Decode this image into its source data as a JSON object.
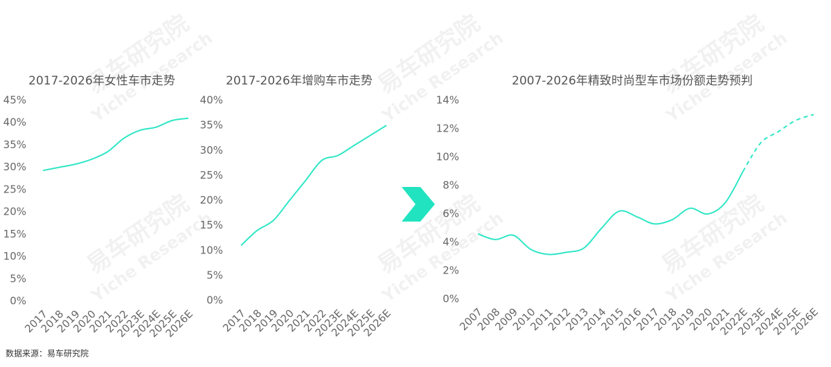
{
  "chart_data": [
    {
      "type": "line",
      "title": "2017-2026年女性车市走势",
      "categories": [
        "2017",
        "2018",
        "2019",
        "2020",
        "2021",
        "2022",
        "2023E",
        "2024E",
        "2025E",
        "2026E"
      ],
      "series": [
        {
          "color": "#2ee6c6",
          "values": [
            29.3,
            30,
            30.7,
            31.8,
            33.5,
            36.5,
            38.3,
            39,
            40.5,
            41
          ]
        }
      ],
      "ylim": [
        0,
        45
      ],
      "yticks": [
        {
          "value": 0,
          "label": "0%"
        },
        {
          "value": 5,
          "label": "5%"
        },
        {
          "value": 10,
          "label": "10%"
        },
        {
          "value": 15,
          "label": "15%"
        },
        {
          "value": 20,
          "label": "20%"
        },
        {
          "value": 25,
          "label": "25%"
        },
        {
          "value": 30,
          "label": "30%"
        },
        {
          "value": 35,
          "label": "35%"
        },
        {
          "value": 40,
          "label": "40%"
        },
        {
          "value": 45,
          "label": "45%"
        }
      ],
      "grid": false
    },
    {
      "type": "line",
      "title": "2017-2026年增购车市走势",
      "categories": [
        "2017",
        "2018",
        "2019",
        "2020",
        "2021",
        "2022",
        "2023E",
        "2024E",
        "2025E",
        "2026E"
      ],
      "series": [
        {
          "color": "#2ee6c6",
          "values": [
            11,
            14,
            16,
            20,
            24,
            28,
            29,
            31,
            33,
            35
          ]
        }
      ],
      "ylim": [
        0,
        40
      ],
      "yticks": [
        {
          "value": 0,
          "label": "0%"
        },
        {
          "value": 5,
          "label": "5%"
        },
        {
          "value": 10,
          "label": "10%"
        },
        {
          "value": 15,
          "label": "15%"
        },
        {
          "value": 20,
          "label": "20%"
        },
        {
          "value": 25,
          "label": "25%"
        },
        {
          "value": 30,
          "label": "30%"
        },
        {
          "value": 35,
          "label": "35%"
        },
        {
          "value": 40,
          "label": "40%"
        }
      ],
      "grid": false
    },
    {
      "type": "line",
      "title": "2007-2026年精致时尚型车市场份额走势预判",
      "categories": [
        "2007",
        "2008",
        "2009",
        "2010",
        "2011",
        "2012",
        "2013",
        "2014",
        "2015",
        "2016",
        "2017",
        "2018",
        "2019",
        "2020",
        "2021",
        "2022E",
        "2023E",
        "2024E",
        "2025E",
        "2026E"
      ],
      "series": [
        {
          "color": "#2ee6c6",
          "dash_from": "2022E",
          "values": [
            4.6,
            4.2,
            4.5,
            3.5,
            3.15,
            3.3,
            3.6,
            5.0,
            6.2,
            5.8,
            5.3,
            5.6,
            6.4,
            6.0,
            6.8,
            9.0,
            11.0,
            11.8,
            12.6,
            13.0
          ]
        }
      ],
      "ylim": [
        0,
        14
      ],
      "yticks": [
        {
          "value": 0,
          "label": "0%"
        },
        {
          "value": 2,
          "label": "2%"
        },
        {
          "value": 4,
          "label": "4%"
        },
        {
          "value": 6,
          "label": "6%"
        },
        {
          "value": 8,
          "label": "8%"
        },
        {
          "value": 10,
          "label": "10%"
        },
        {
          "value": 12,
          "label": "12%"
        },
        {
          "value": 14,
          "label": "14%"
        }
      ],
      "grid": false
    }
  ],
  "watermark": {
    "cn": "易车研究院",
    "en": "Yiche Research"
  },
  "source": "数据来源：易车研究院"
}
